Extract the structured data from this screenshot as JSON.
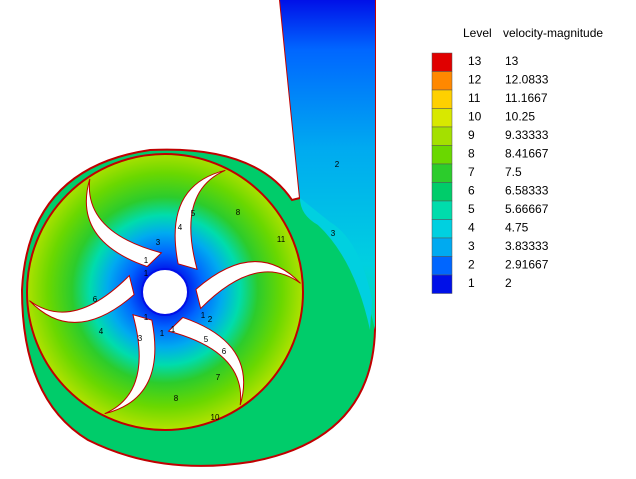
{
  "legend": {
    "level_header": "Level",
    "title": "velocity-magnitude",
    "rows": [
      {
        "level": "13",
        "value": "13",
        "color": "#e00000"
      },
      {
        "level": "12",
        "value": "12.0833",
        "color": "#ff8800"
      },
      {
        "level": "11",
        "value": "11.1667",
        "color": "#ffd000"
      },
      {
        "level": "10",
        "value": "10.25",
        "color": "#d8e800"
      },
      {
        "level": "9",
        "value": "9.33333",
        "color": "#a4e000"
      },
      {
        "level": "8",
        "value": "8.41667",
        "color": "#6ad800"
      },
      {
        "level": "7",
        "value": "7.5",
        "color": "#2ccc2c"
      },
      {
        "level": "6",
        "value": "6.58333",
        "color": "#00cc6a"
      },
      {
        "level": "5",
        "value": "5.66667",
        "color": "#00dcac"
      },
      {
        "level": "4",
        "value": "4.75",
        "color": "#00d0e0"
      },
      {
        "level": "3",
        "value": "3.83333",
        "color": "#00aaf0"
      },
      {
        "level": "2",
        "value": "2.91667",
        "color": "#0066ff"
      },
      {
        "level": "1",
        "value": "2",
        "color": "#0010e8"
      }
    ]
  },
  "contour_labels": [
    "2",
    "3",
    "11",
    "1",
    "1",
    "1",
    "1",
    "1",
    "1",
    "2",
    "3",
    "4",
    "5",
    "6",
    "7",
    "8",
    "10",
    "3",
    "4",
    "5",
    "6",
    "8"
  ]
}
